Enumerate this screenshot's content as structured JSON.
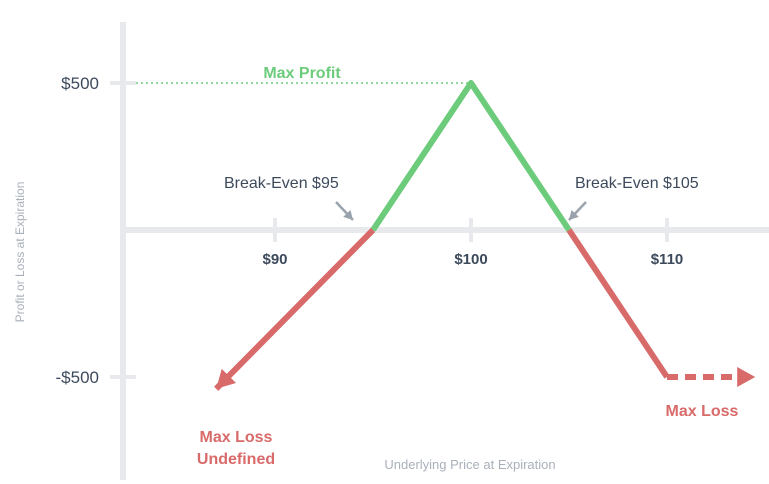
{
  "chart_data": {
    "type": "line",
    "title": "",
    "xlabel": "Underlying Price at Expiration",
    "ylabel": "Profit or Loss at Expiration",
    "xlim": [
      85,
      115
    ],
    "ylim": [
      -500,
      500
    ],
    "x_ticks": [
      {
        "value": 90,
        "label": "$90"
      },
      {
        "value": 100,
        "label": "$100"
      },
      {
        "value": 110,
        "label": "$110"
      }
    ],
    "y_ticks": [
      {
        "value": 500,
        "label": "$500"
      },
      {
        "value": -500,
        "label": "-$500"
      }
    ],
    "series": [
      {
        "x": [
          95,
          100,
          105
        ],
        "y": [
          0,
          500,
          0
        ],
        "color": "#6ccc7c"
      },
      {
        "x": [
          87,
          95
        ],
        "y": [
          -540,
          0
        ],
        "color": "#d96a6a",
        "arrow": "start"
      },
      {
        "x": [
          105,
          110
        ],
        "y": [
          0,
          -500
        ],
        "color": "#d96a6a"
      },
      {
        "x": [
          110,
          114.5
        ],
        "y": [
          -500,
          -500
        ],
        "color": "#d96a6a",
        "dashed": true,
        "arrow": "end"
      }
    ],
    "annotations": {
      "max_profit": "Max Profit",
      "break_even_left": "Break-Even $95",
      "break_even_right": "Break-Even $105",
      "max_loss": "Max Loss",
      "max_loss_undefined_line1": "Max Loss",
      "max_loss_undefined_line2": "Undefined"
    },
    "colors": {
      "profit": "#6ccc7c",
      "loss": "#d96a6a",
      "axis": "#e8e9ec",
      "text": "#3d4a5c",
      "muted": "#a9b0ba",
      "arrow": "#9aa3ad"
    },
    "grid": false
  }
}
